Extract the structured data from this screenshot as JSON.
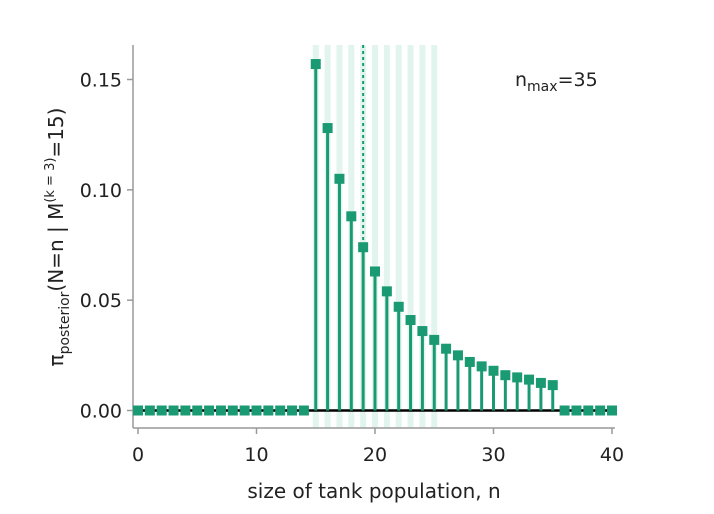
{
  "chart_data": {
    "type": "stem",
    "x": [
      0,
      1,
      2,
      3,
      4,
      5,
      6,
      7,
      8,
      9,
      10,
      11,
      12,
      13,
      14,
      15,
      16,
      17,
      18,
      19,
      20,
      21,
      22,
      23,
      24,
      25,
      26,
      27,
      28,
      29,
      30,
      31,
      32,
      33,
      34,
      35,
      36,
      37,
      38,
      39,
      40
    ],
    "values": [
      0,
      0,
      0,
      0,
      0,
      0,
      0,
      0,
      0,
      0,
      0,
      0,
      0,
      0,
      0,
      0.157,
      0.128,
      0.105,
      0.088,
      0.074,
      0.063,
      0.054,
      0.047,
      0.041,
      0.036,
      0.032,
      0.028,
      0.025,
      0.022,
      0.02,
      0.018,
      0.016,
      0.015,
      0.014,
      0.0125,
      0.0115,
      0,
      0,
      0,
      0,
      0
    ],
    "xlabel": "size of tank population, n",
    "ylabel": {
      "prefix": "π",
      "sub": "posterior",
      "mid": "(N=n | M",
      "sup": "(k = 3)",
      "suffix": "=15)"
    },
    "xticks": [
      "0",
      "10",
      "20",
      "30",
      "40"
    ],
    "yticks": [
      "0.00",
      "0.05",
      "0.10",
      "0.15"
    ],
    "xlim": [
      0,
      40
    ],
    "ylim": [
      -0.008,
      0.16
    ],
    "annotation": {
      "base": "n",
      "sub": "max",
      "suffix": "=35"
    },
    "dotted_line_x": 19,
    "credible_region": [
      15,
      16,
      17,
      18,
      19,
      20,
      21,
      22,
      23,
      24,
      25
    ],
    "colors": {
      "stem": "#1a9a72",
      "band": "#e2f4ee",
      "axis": "#999999",
      "baseline": "#000000"
    },
    "grid": false
  }
}
